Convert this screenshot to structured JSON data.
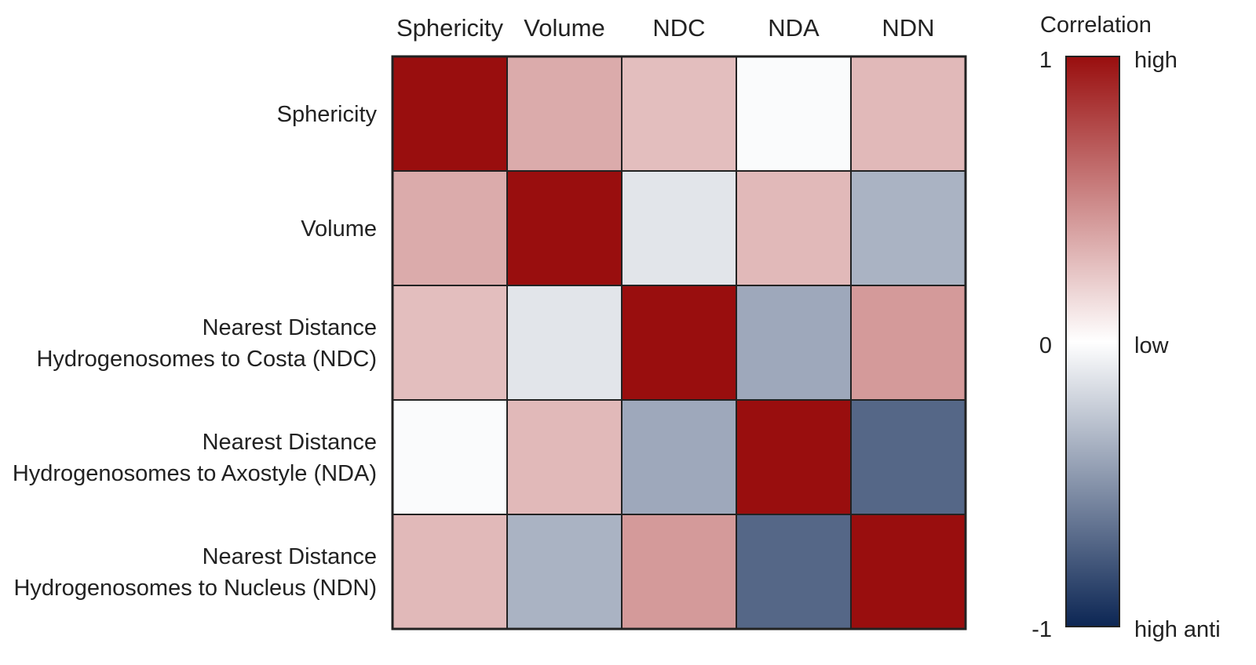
{
  "chart_data": {
    "type": "heatmap",
    "title": "",
    "columns": [
      "Sphericity",
      "Volume",
      "NDC",
      "NDA",
      "NDN"
    ],
    "rows": [
      [
        "Sphericity"
      ],
      [
        "Volume"
      ],
      [
        "Nearest Distance",
        "Hydrogenosomes to Costa (NDC)"
      ],
      [
        "Nearest Distance",
        "Hydrogenosomes to Axostyle (NDA)"
      ],
      [
        "Nearest Distance",
        "Hydrogenosomes to Nucleus (NDN)"
      ]
    ],
    "values": [
      [
        1.0,
        0.35,
        0.27,
        -0.02,
        0.29
      ],
      [
        0.35,
        1.0,
        -0.12,
        0.29,
        -0.35
      ],
      [
        0.27,
        -0.12,
        1.0,
        -0.4,
        0.42
      ],
      [
        -0.02,
        0.29,
        -0.4,
        1.0,
        -0.7
      ],
      [
        0.29,
        -0.35,
        0.42,
        -0.7,
        1.0
      ]
    ],
    "colorbar": {
      "title": "Correlation",
      "range": [
        -1,
        1
      ],
      "ticks": [
        {
          "value": 1,
          "label": "1",
          "description": "high"
        },
        {
          "value": 0,
          "label": "0",
          "description": "low"
        },
        {
          "value": -1,
          "label": "-1",
          "description": "high anti"
        }
      ],
      "colors": {
        "high": "#990e0e",
        "mid": "#ffffff",
        "low": "#0c2654"
      }
    },
    "legend_placement": "right",
    "grid": false
  }
}
